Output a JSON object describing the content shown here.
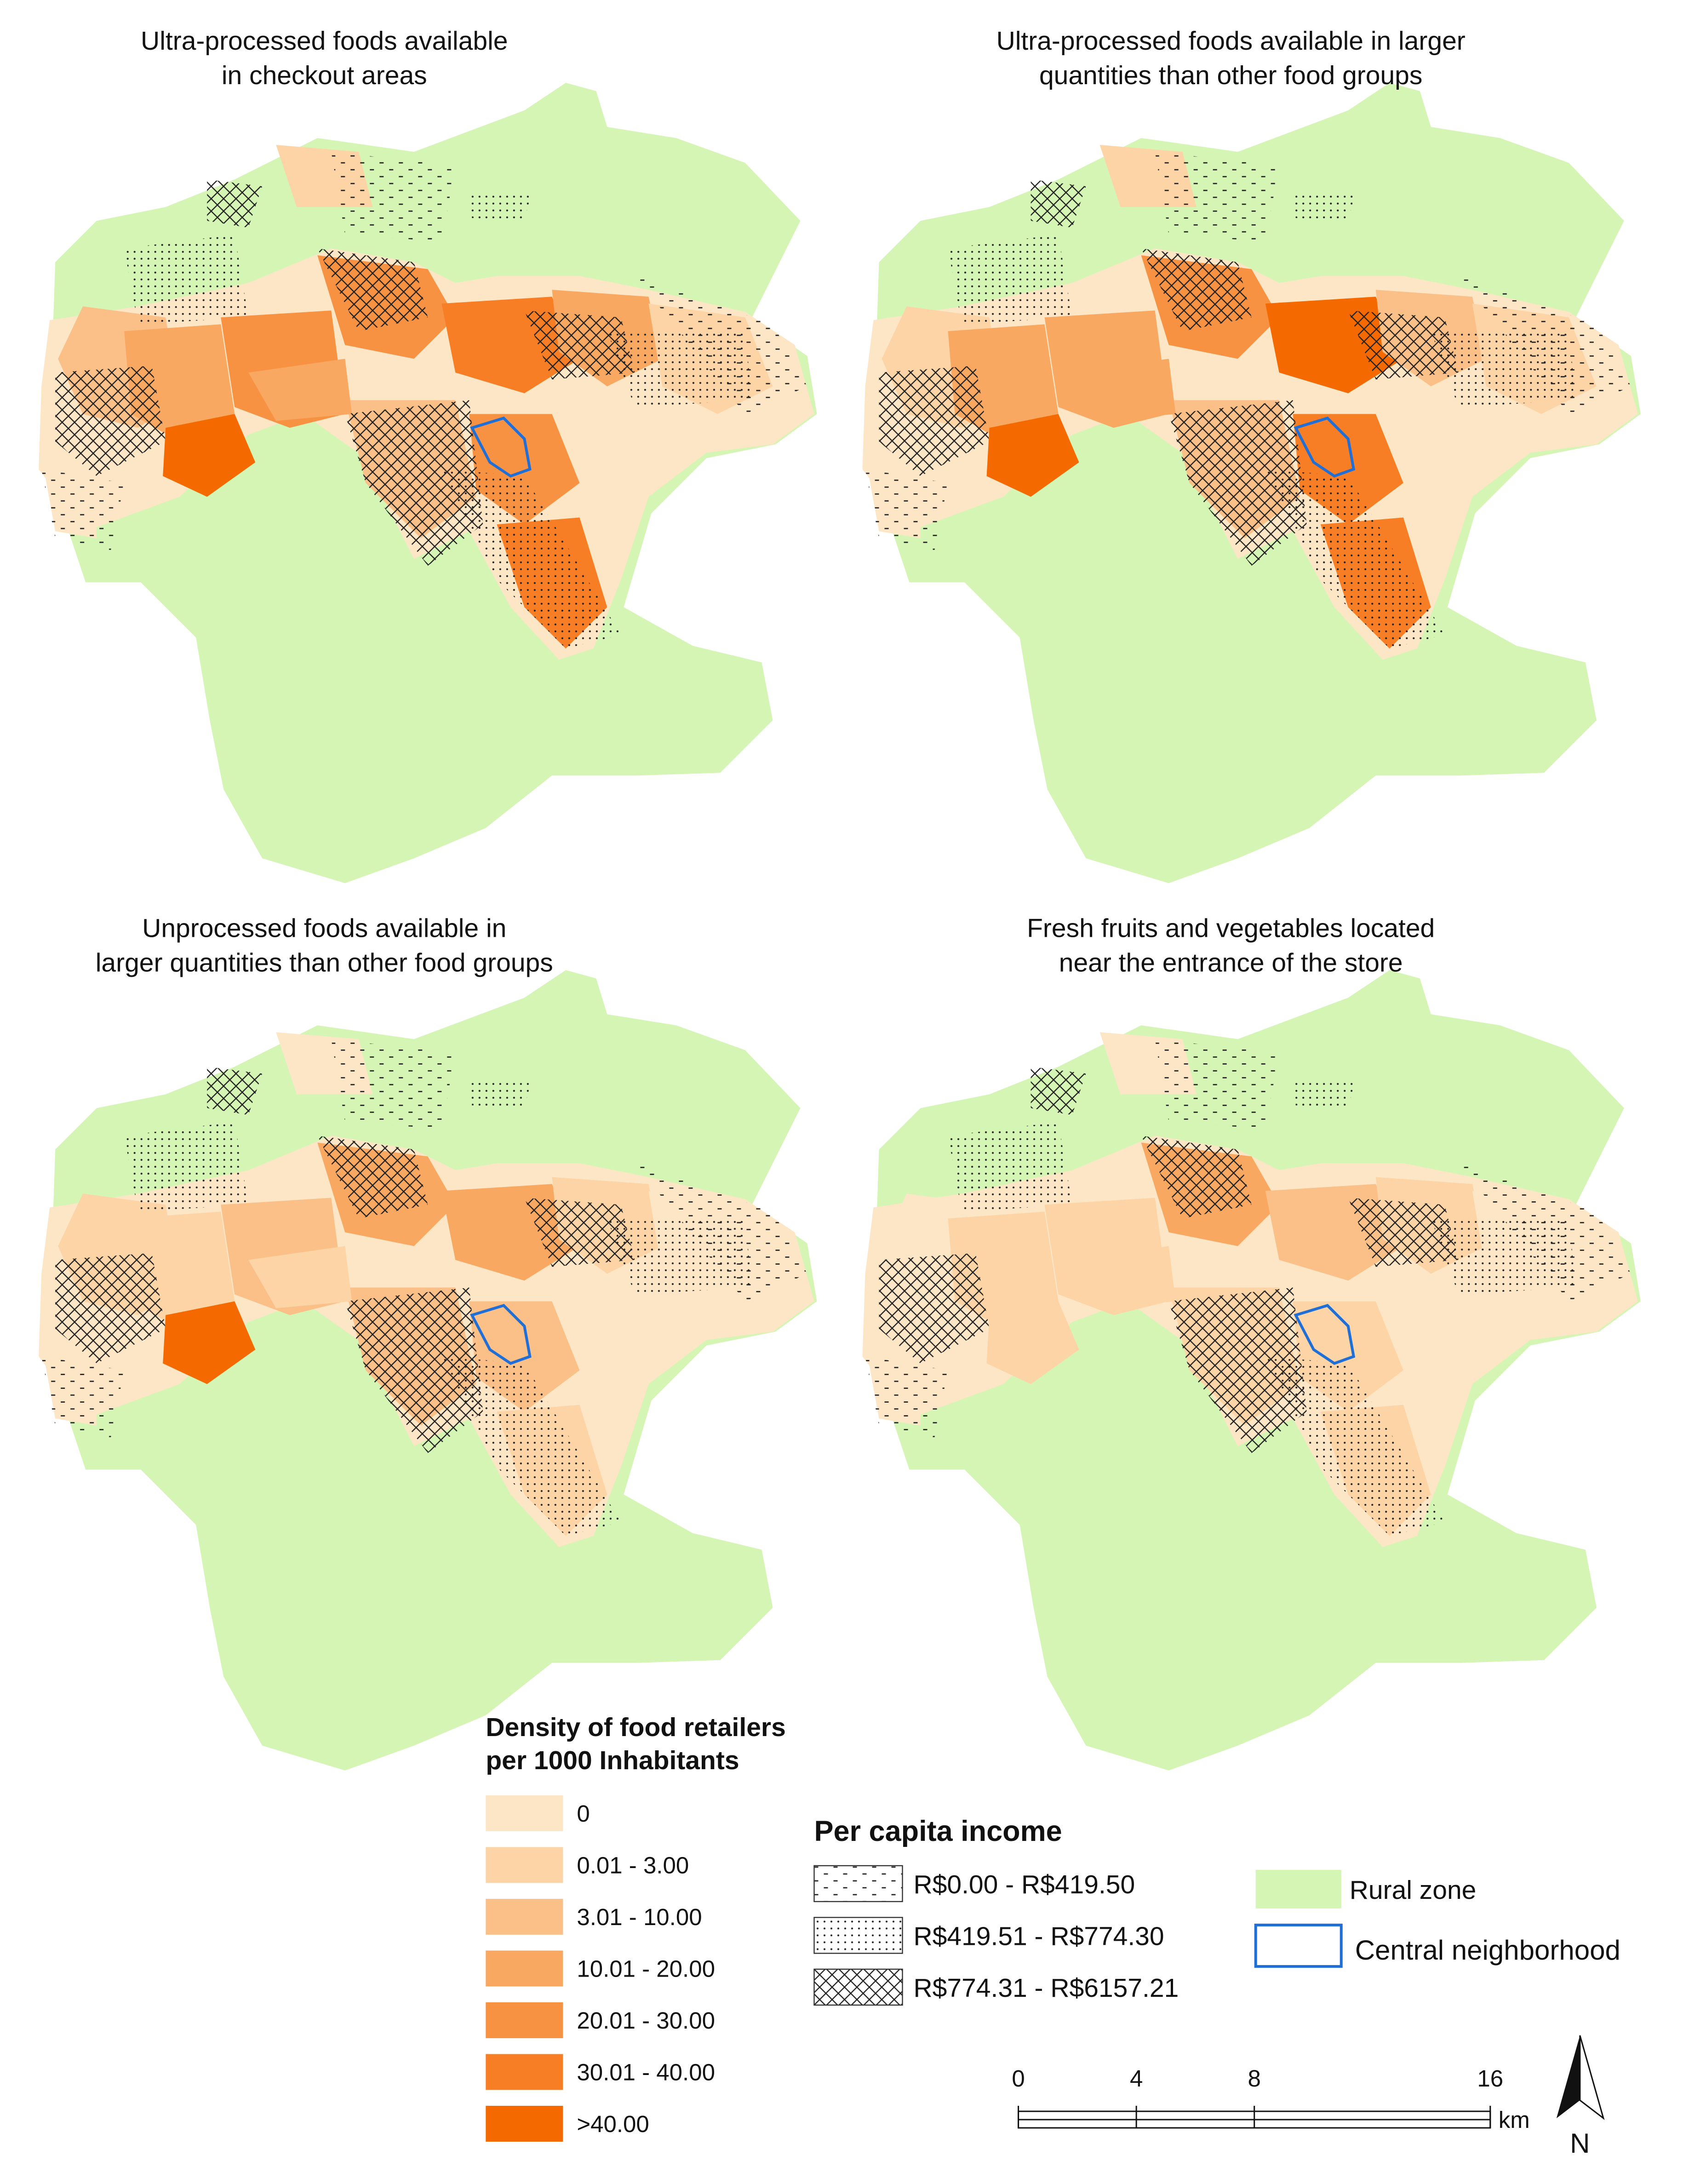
{
  "panels": [
    {
      "title_lines": [
        "Ultra-processed foods available",
        "in checkout areas"
      ]
    },
    {
      "title_lines": [
        "Ultra-processed foods available in larger",
        "quantities than other food groups"
      ]
    },
    {
      "title_lines": [
        "Unprocessed foods available in",
        "larger quantities than other food groups"
      ]
    },
    {
      "title_lines": [
        "Fresh fruits and vegetables located",
        "near the entrance of the store"
      ]
    }
  ],
  "density_legend": {
    "title_lines": [
      "Density of food retailers",
      "per 1000 Inhabitants"
    ],
    "classes": [
      {
        "label": "0",
        "color": "#fde6c6"
      },
      {
        "label": "0.01 - 3.00",
        "color": "#fdd4a6"
      },
      {
        "label": "3.01 - 10.00",
        "color": "#fbbf88"
      },
      {
        "label": "10.01 - 20.00",
        "color": "#f9a862"
      },
      {
        "label": "20.01 - 30.00",
        "color": "#f89243"
      },
      {
        "label": "30.01 - 40.00",
        "color": "#f77e24"
      },
      {
        "label": ">40.00",
        "color": "#f56a00"
      }
    ]
  },
  "income_legend": {
    "title": "Per capita income",
    "classes": [
      {
        "label": "R$0.00 - R$419.50",
        "pattern": "dashes"
      },
      {
        "label": "R$419.51 - R$774.30",
        "pattern": "dots"
      },
      {
        "label": "R$774.31 - R$6157.21",
        "pattern": "cross"
      }
    ]
  },
  "rural_zone": {
    "label": "Rural zone",
    "color": "#d5f5b5"
  },
  "central_neighborhood": {
    "label": "Central neighborhood",
    "color": "#1f6fd6"
  },
  "scale_bar": {
    "ticks": [
      0,
      4,
      8,
      16
    ],
    "unit": "km"
  },
  "north_arrow": "N"
}
